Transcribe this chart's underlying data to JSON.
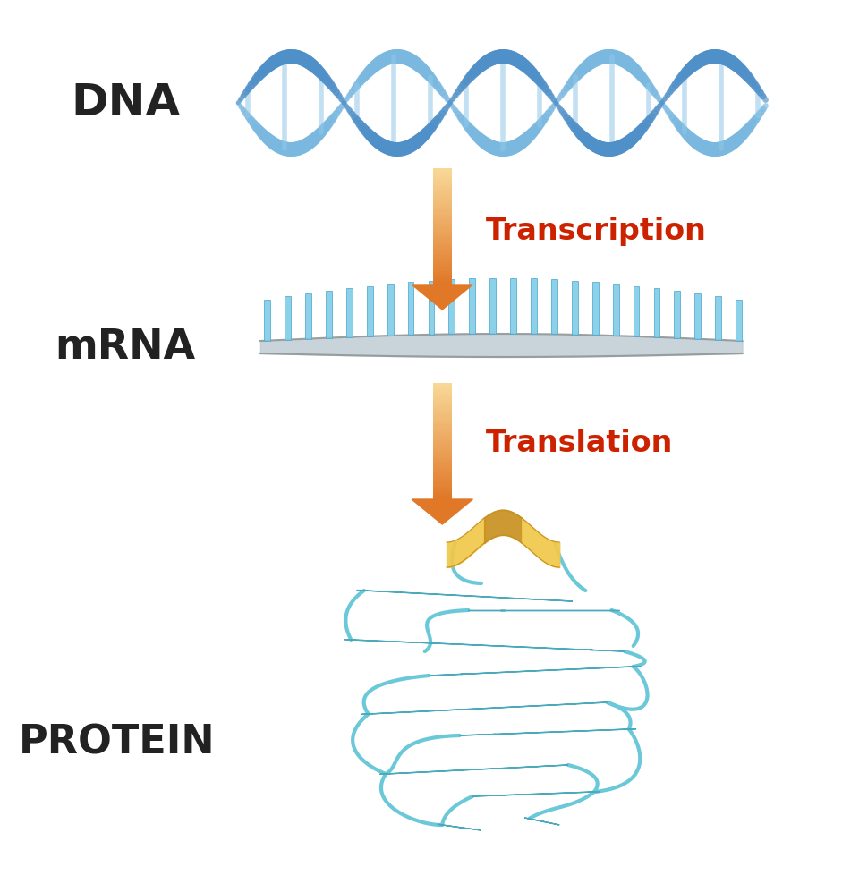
{
  "background_color": "#ffffff",
  "dna_color1": "#7ab8e0",
  "dna_color2": "#5090c8",
  "dna_rung_color": "#90c8e8",
  "mrna_bar_color": "#80cce8",
  "arrow_color_top": "#f8d898",
  "arrow_color_bottom": "#e07828",
  "label_color": "#222222",
  "transcription_color": "#cc2200",
  "translation_color": "#cc2200",
  "protein_color": "#6ac8d8",
  "protein_edge": "#4aaabb",
  "protein_loop": "#6ac8d8",
  "protein_helix_light": "#f0c84a",
  "protein_helix_dark": "#c89020",
  "dna_label": "DNA",
  "mrna_label": "mRNA",
  "protein_label": "PROTEIN",
  "transcription_label": "Transcription",
  "translation_label": "Translation"
}
